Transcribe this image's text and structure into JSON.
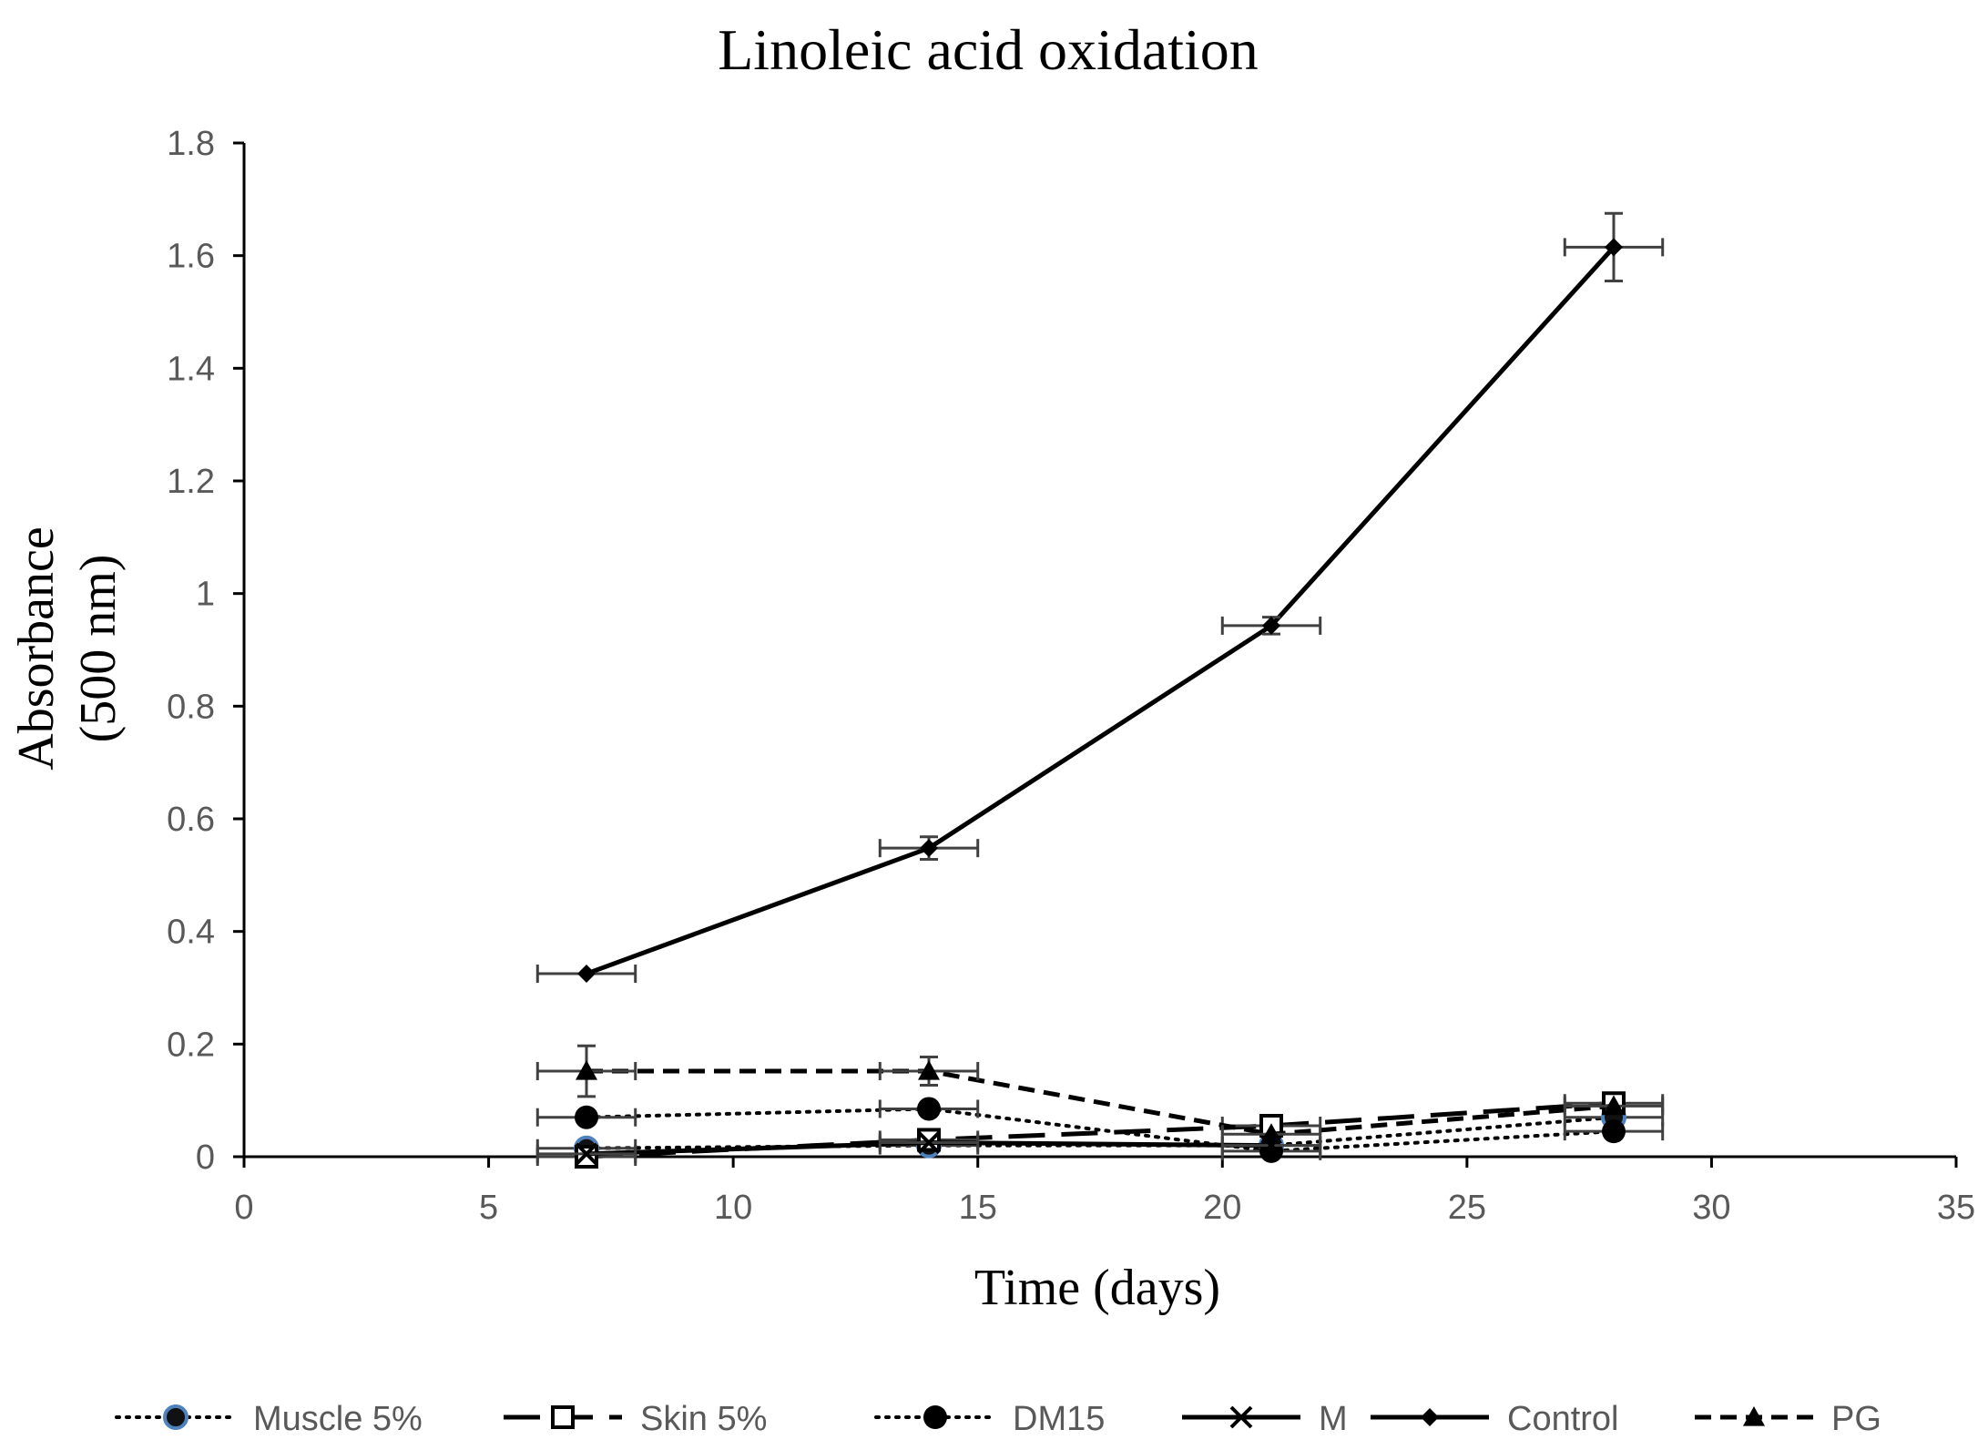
{
  "chart_data": {
    "type": "line",
    "title": "Linoleic acid oxidation",
    "xlabel": "Time (days)",
    "ylabel_lines": [
      "Absorbance",
      "(500 nm)"
    ],
    "xlim": [
      0,
      35
    ],
    "ylim": [
      0,
      1.8
    ],
    "x_ticks": [
      "0",
      "5",
      "10",
      "15",
      "20",
      "25",
      "30",
      "35"
    ],
    "y_ticks": [
      "0",
      "0.2",
      "0.4",
      "0.6",
      "0.8",
      "1",
      "1.2",
      "1.4",
      "1.6",
      "1.8"
    ],
    "x_error": 1,
    "grid": false,
    "legend_position": "bottom",
    "series": [
      {
        "name": "Muscle 5%",
        "x": [
          7,
          14,
          21,
          28
        ],
        "y": [
          0.015,
          0.02,
          0.02,
          0.07
        ],
        "y_err": [
          0,
          0,
          0,
          0
        ],
        "marker": "circle-blue-edge",
        "line": "dotted",
        "color": "#000000"
      },
      {
        "name": "Skin 5%",
        "x": [
          7,
          14,
          21,
          28
        ],
        "y": [
          0.0,
          0.03,
          0.055,
          0.095
        ],
        "y_err": [
          0,
          0,
          0,
          0
        ],
        "marker": "square-open",
        "line": "long-dash",
        "color": "#000000"
      },
      {
        "name": "DM15",
        "x": [
          7,
          14,
          21,
          28
        ],
        "y": [
          0.07,
          0.085,
          0.01,
          0.045
        ],
        "y_err": [
          0,
          0,
          0,
          0
        ],
        "marker": "circle",
        "line": "dotted",
        "color": "#000000"
      },
      {
        "name": "M",
        "x": [
          7,
          14,
          21,
          28
        ],
        "y": [
          0.005,
          0.025,
          0.02,
          null
        ],
        "y_err": [
          0,
          0,
          0,
          0
        ],
        "marker": "x",
        "line": "solid",
        "color": "#000000"
      },
      {
        "name": "Control",
        "x": [
          7,
          14,
          21,
          28
        ],
        "y": [
          0.325,
          0.548,
          0.943,
          1.615
        ],
        "y_err": [
          0,
          0.02,
          0.015,
          0.06
        ],
        "marker": "diamond",
        "line": "solid",
        "color": "#000000"
      },
      {
        "name": "PG",
        "x": [
          7,
          14,
          21,
          28
        ],
        "y": [
          0.152,
          0.152,
          0.04,
          0.09
        ],
        "y_err": [
          0.045,
          0.025,
          0,
          0
        ],
        "marker": "triangle",
        "line": "dashed",
        "color": "#000000"
      }
    ]
  }
}
